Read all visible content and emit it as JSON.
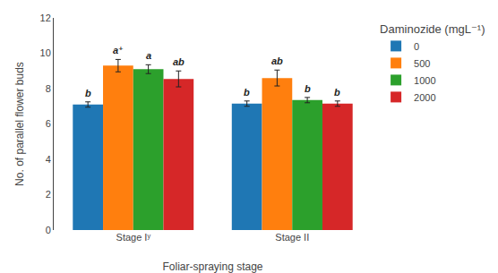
{
  "chart_data": {
    "type": "bar",
    "categories": [
      "Stage Iʸ",
      "Stage II"
    ],
    "series": [
      {
        "name": "0",
        "values": [
          7.1,
          7.15
        ],
        "errors": [
          0.15,
          0.15
        ],
        "labels": [
          "b",
          "b"
        ]
      },
      {
        "name": "500",
        "values": [
          9.3,
          8.6
        ],
        "errors": [
          0.35,
          0.45
        ],
        "labels": [
          "a⁺",
          "ab"
        ]
      },
      {
        "name": "1000",
        "values": [
          9.1,
          7.35
        ],
        "errors": [
          0.25,
          0.15
        ],
        "labels": [
          "a",
          "b"
        ]
      },
      {
        "name": "2000",
        "values": [
          8.55,
          7.15
        ],
        "errors": [
          0.45,
          0.15
        ],
        "labels": [
          "ab",
          "b"
        ]
      }
    ],
    "xlabel": "Foliar-spraying stage",
    "ylabel": "No. of parallel flower buds",
    "legend_title": "Daminozide (mgL⁻¹)",
    "legend": "upper right",
    "ylim": [
      0,
      12
    ],
    "yticks": [
      0,
      2,
      4,
      6,
      8,
      10,
      12
    ],
    "grid": false
  }
}
